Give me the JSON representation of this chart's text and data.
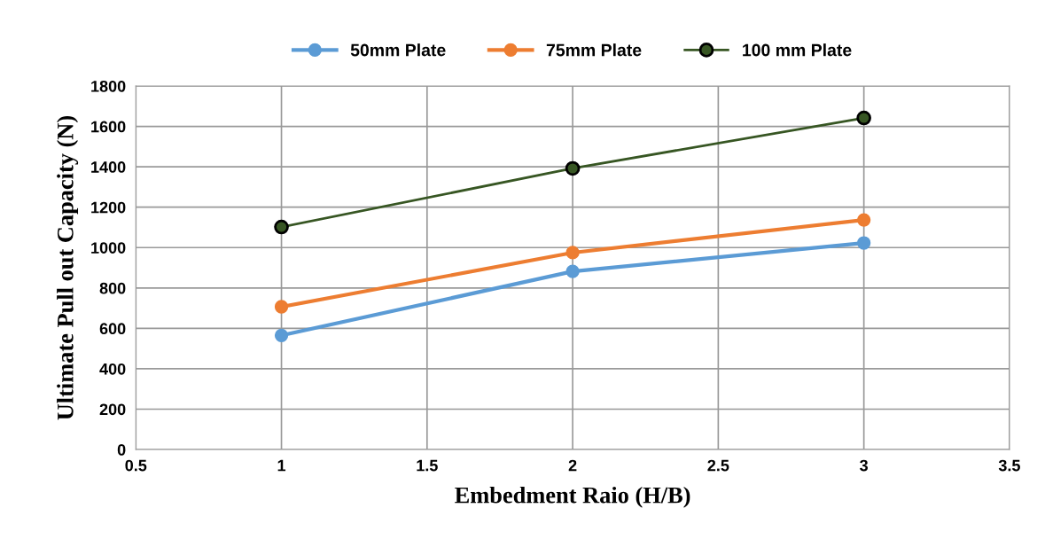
{
  "chart_data": {
    "type": "line",
    "xlabel": "Embedment Raio (H/B)",
    "ylabel": "Ultimate Pull out Capacity (N)",
    "x": [
      1,
      2,
      3
    ],
    "series": [
      {
        "name": "50mm Plate",
        "color": "#5b9bd5",
        "values": [
          565,
          882,
          1023
        ]
      },
      {
        "name": "75mm Plate",
        "color": "#ed7d31",
        "values": [
          707,
          975,
          1137
        ]
      },
      {
        "name": "100 mm Plate",
        "color": "#375623",
        "values": [
          1102,
          1392,
          1642
        ]
      }
    ],
    "xlim": [
      0.5,
      3.5
    ],
    "xticks": [
      0.5,
      1,
      1.5,
      2,
      2.5,
      3,
      3.5
    ],
    "ylim": [
      0,
      1800
    ],
    "yticks": [
      0,
      200,
      400,
      600,
      800,
      1000,
      1200,
      1400,
      1600,
      1800
    ],
    "grid": true,
    "legend": "top",
    "marker": "circle",
    "line_style": "solid"
  }
}
